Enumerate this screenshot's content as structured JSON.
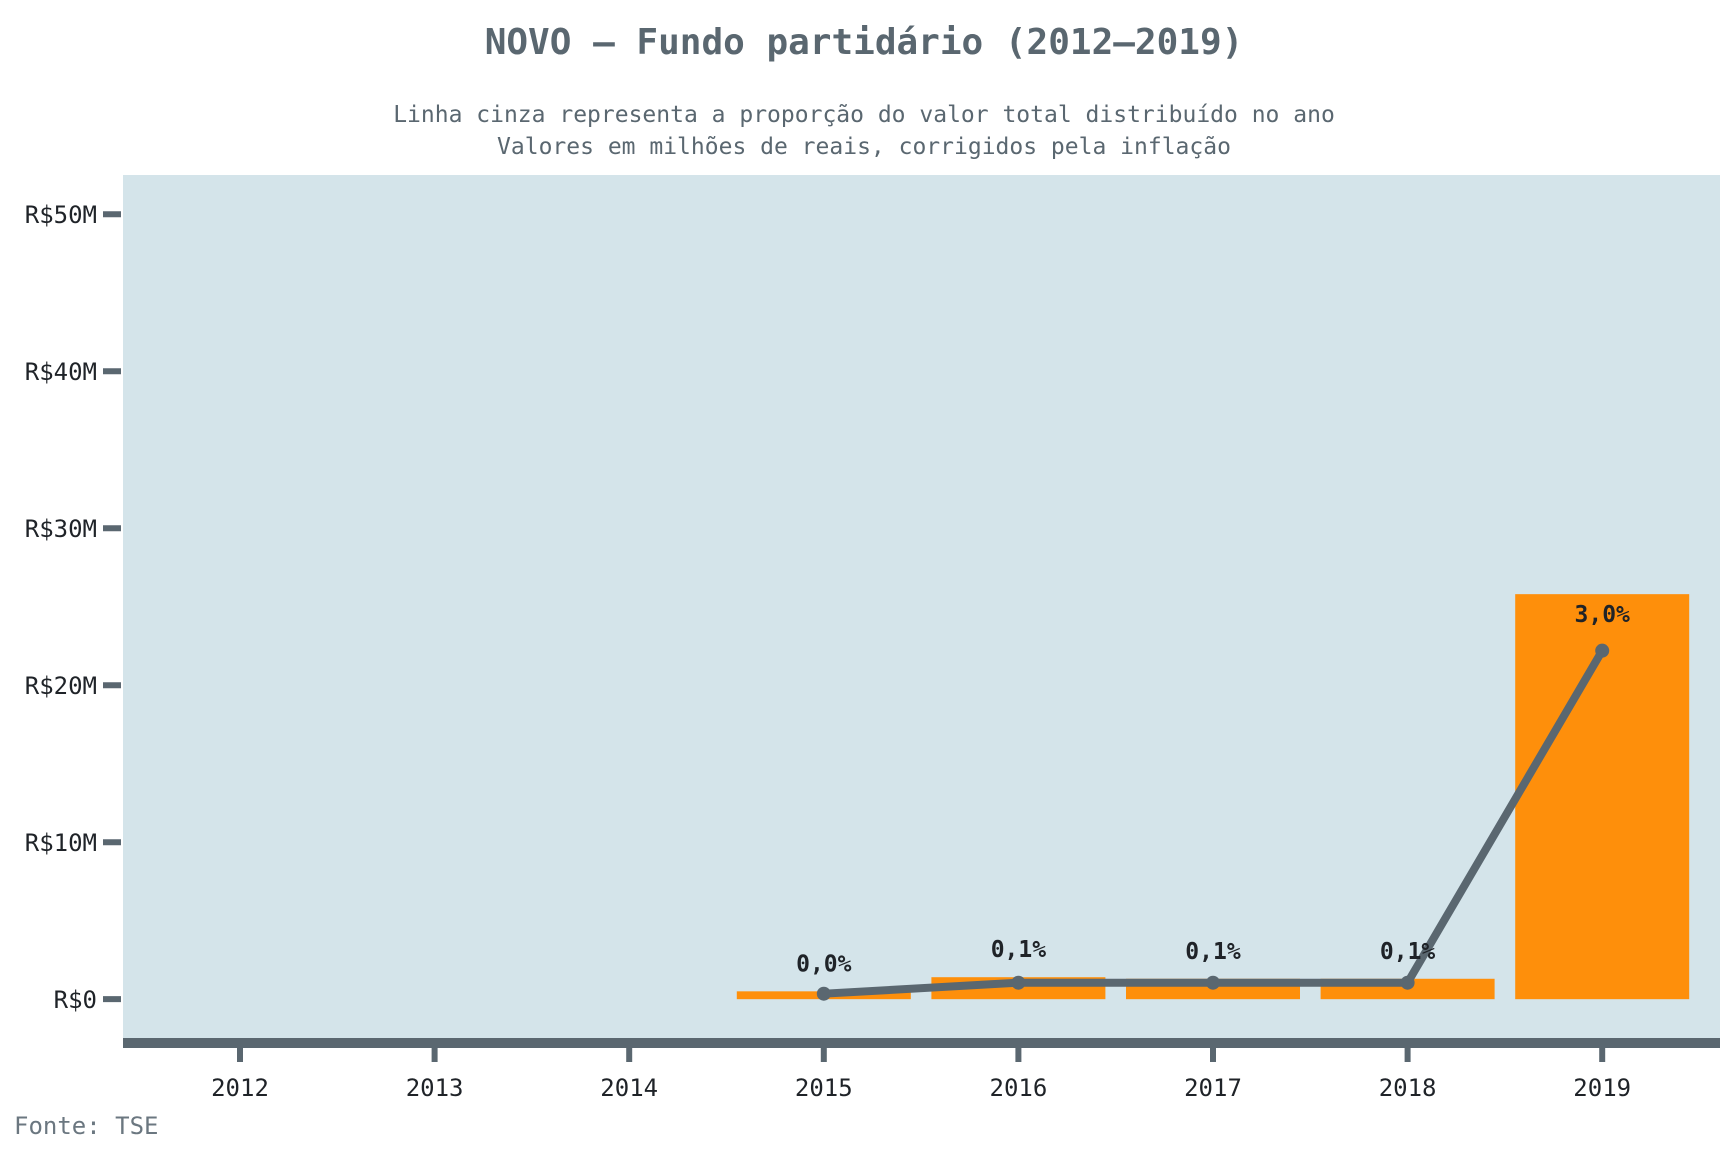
{
  "chart_data": {
    "type": "bar",
    "title": "NOVO – Fundo partidário (2012–2019)",
    "subtitle_lines": [
      "Linha cinza representa a proporção do valor total distribuído no ano",
      "Valores em milhões de reais, corrigidos pela inflação"
    ],
    "source": "Fonte: TSE",
    "categories": [
      "2012",
      "2013",
      "2014",
      "2015",
      "2016",
      "2017",
      "2018",
      "2019"
    ],
    "bar_values_millions": [
      null,
      null,
      null,
      0.5,
      1.4,
      1.3,
      1.3,
      25.8
    ],
    "share_percent": [
      null,
      null,
      null,
      0.0,
      0.1,
      0.1,
      0.1,
      3.0
    ],
    "share_labels": [
      null,
      null,
      null,
      "0,0%",
      "0,1%",
      "0,1%",
      "0,1%",
      "3,0%"
    ],
    "line_values_on_axis_millions": [
      null,
      null,
      null,
      0.35,
      1.05,
      1.05,
      1.05,
      22.2
    ],
    "y_ticks": [
      0,
      10,
      20,
      30,
      40,
      50
    ],
    "y_tick_labels": [
      "R$0",
      "R$10M",
      "R$20M",
      "R$30M",
      "R$40M",
      "R$50M"
    ],
    "ylim": [
      -2.6,
      52.5
    ],
    "grid": false,
    "colors": {
      "panel": "#d4e4ea",
      "bar": "#fe8f0b",
      "line": "#5a6770",
      "axis": "#5a6770"
    }
  }
}
